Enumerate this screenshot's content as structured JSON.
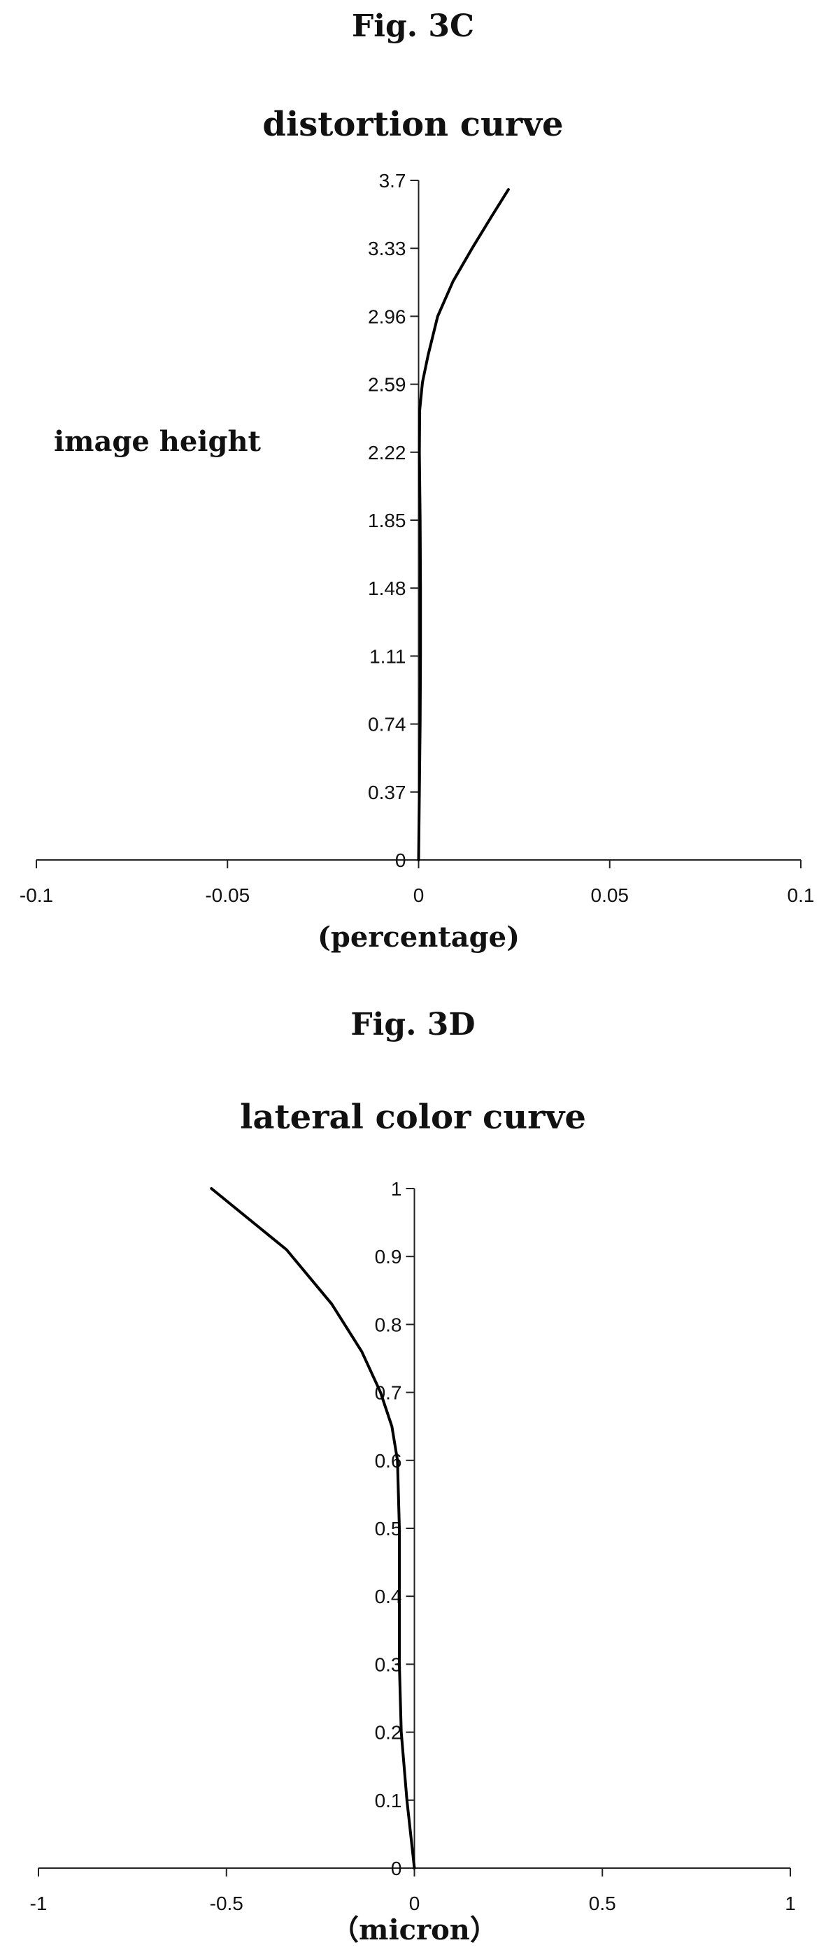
{
  "chart_data": [
    {
      "figure_label": "Fig. 3C",
      "type": "line",
      "title": "distortion curve",
      "xlabel": "(percentage)",
      "ylabel": "image height",
      "xlim": [
        -0.1,
        0.1
      ],
      "ylim": [
        0,
        3.7
      ],
      "x_ticks": [
        "-0.1",
        "-0.05",
        "0",
        "0.05",
        "0.1"
      ],
      "y_ticks": [
        "0",
        "0.37",
        "0.74",
        "1.11",
        "1.48",
        "1.85",
        "2.22",
        "2.59",
        "2.96",
        "3.33",
        "3.7"
      ],
      "series": [
        {
          "x": [
            0,
            0.0002,
            0.0004,
            0.0005,
            0.0005,
            0.0004,
            0.0002,
            0.0003,
            0.001,
            0.0025,
            0.005,
            0.009,
            0.014,
            0.019,
            0.0235
          ],
          "y": [
            0,
            0.37,
            0.74,
            1.11,
            1.48,
            1.85,
            2.22,
            2.45,
            2.6,
            2.75,
            2.96,
            3.15,
            3.33,
            3.5,
            3.65
          ]
        }
      ],
      "grid": false
    },
    {
      "figure_label": "Fig. 3D",
      "type": "line",
      "title": "lateral color curve",
      "xlabel": "（micron）",
      "ylabel": "",
      "xlim": [
        -1,
        1
      ],
      "ylim": [
        0,
        1
      ],
      "x_ticks": [
        "-1",
        "-0.5",
        "0",
        "0.5",
        "1"
      ],
      "y_ticks": [
        "0",
        "0.1",
        "0.2",
        "0.3",
        "0.4",
        "0.5",
        "0.6",
        "0.7",
        "0.8",
        "0.9",
        "1"
      ],
      "series": [
        {
          "x": [
            0,
            -0.02,
            -0.035,
            -0.04,
            -0.04,
            -0.04,
            -0.045,
            -0.06,
            -0.09,
            -0.14,
            -0.22,
            -0.34,
            -0.54
          ],
          "y": [
            0,
            0.1,
            0.2,
            0.3,
            0.4,
            0.5,
            0.6,
            0.65,
            0.7,
            0.76,
            0.83,
            0.91,
            1.0
          ]
        }
      ],
      "grid": false
    }
  ]
}
